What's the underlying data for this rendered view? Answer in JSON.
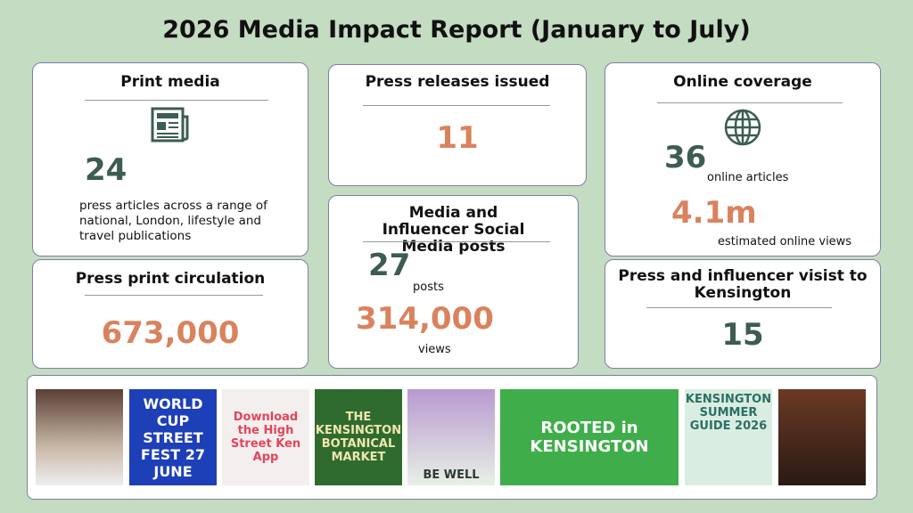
{
  "title": "2026 Media Impact  Report (January to July)",
  "cards": {
    "print_media": {
      "heading": "Print media",
      "number": "24",
      "text": "press articles across a range of national, London, lifestyle and travel publications"
    },
    "circulation": {
      "heading": "Press print circulation",
      "number": "673,000"
    },
    "press_releases": {
      "heading": "Press releases issued",
      "number": "11"
    },
    "social": {
      "heading": "Media and Influencer Social Media posts",
      "posts_number": "27",
      "posts_label": "posts",
      "views_number": "314,000",
      "views_label": "views"
    },
    "online": {
      "heading": "Online coverage",
      "articles_number": "36",
      "articles_label": "online articles",
      "views_number": "4.1m",
      "views_label": "estimated online views"
    },
    "visits": {
      "heading": "Press and influencer visist to Kensington",
      "number": "15"
    }
  },
  "thumbnails": [
    "",
    "WORLD CUP STREET FEST 27 JUNE",
    "Download the High Street Ken App",
    "THE KENSINGTON BOTANICAL MARKET",
    "BE WELL",
    "ROOTED in KENSINGTON",
    "KENSINGTON SUMMER GUIDE 2026",
    ""
  ]
}
